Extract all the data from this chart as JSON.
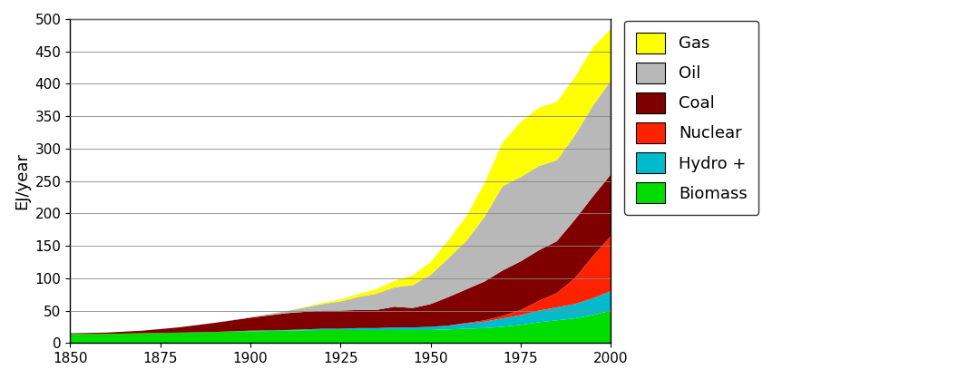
{
  "years": [
    1850,
    1860,
    1870,
    1880,
    1890,
    1900,
    1910,
    1920,
    1925,
    1930,
    1935,
    1940,
    1945,
    1950,
    1955,
    1960,
    1965,
    1970,
    1975,
    1980,
    1985,
    1990,
    1995,
    2000
  ],
  "biomass": [
    14,
    14,
    15,
    16,
    17,
    18,
    19,
    20,
    20,
    20,
    20,
    20,
    20,
    20,
    21,
    22,
    23,
    25,
    28,
    32,
    35,
    38,
    43,
    50
  ],
  "hydro": [
    0,
    0,
    0,
    0,
    0,
    1,
    1,
    2,
    2,
    3,
    3,
    4,
    4,
    5,
    6,
    8,
    10,
    13,
    15,
    18,
    20,
    22,
    26,
    30
  ],
  "nuclear": [
    0,
    0,
    0,
    0,
    0,
    0,
    0,
    0,
    0,
    0,
    0,
    0,
    0,
    0,
    0,
    1,
    2,
    4,
    8,
    15,
    22,
    40,
    65,
    85
  ],
  "coal": [
    1,
    2,
    4,
    8,
    14,
    20,
    26,
    28,
    28,
    28,
    28,
    32,
    30,
    35,
    44,
    52,
    60,
    70,
    75,
    78,
    80,
    90,
    92,
    95
  ],
  "oil": [
    0,
    0,
    0,
    0,
    0,
    1,
    3,
    10,
    14,
    20,
    25,
    30,
    35,
    45,
    60,
    75,
    100,
    130,
    130,
    130,
    125,
    130,
    140,
    145
  ],
  "gas": [
    0,
    0,
    0,
    0,
    0,
    0,
    0,
    2,
    3,
    5,
    7,
    10,
    15,
    20,
    28,
    38,
    52,
    68,
    85,
    90,
    90,
    90,
    90,
    80
  ],
  "colors": {
    "biomass": "#00dd00",
    "hydro": "#00bbcc",
    "nuclear": "#ff2200",
    "coal": "#800000",
    "oil": "#b8b8b8",
    "gas": "#ffff00"
  },
  "ylabel": "EJ/year",
  "ylim": [
    0,
    500
  ],
  "yticks": [
    0,
    50,
    100,
    150,
    200,
    250,
    300,
    350,
    400,
    450,
    500
  ],
  "xlim": [
    1850,
    2000
  ],
  "xticks": [
    1850,
    1875,
    1900,
    1925,
    1950,
    1975,
    2000
  ],
  "legend_labels": [
    "Gas",
    "Oil",
    "Coal",
    "Nuclear",
    "Hydro +",
    "Biomass"
  ],
  "legend_colors": [
    "#ffff00",
    "#b8b8b8",
    "#800000",
    "#ff2200",
    "#00bbcc",
    "#00dd00"
  ],
  "background_color": "#ffffff",
  "grid_color": "#555555"
}
